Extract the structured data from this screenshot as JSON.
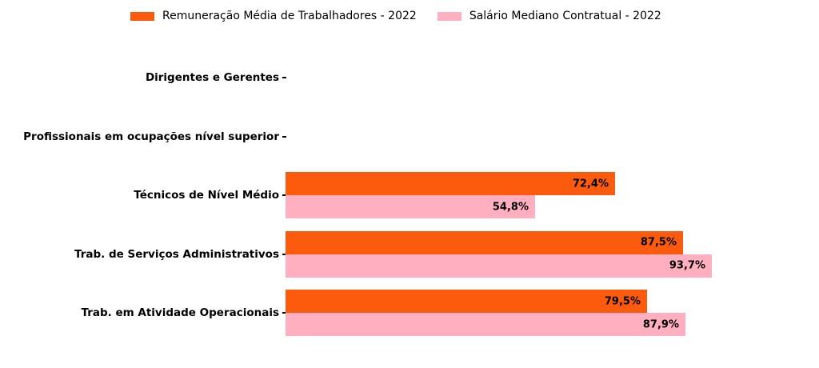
{
  "colors": {
    "background": "#FFFFFF",
    "bar_orange": "#FC5A0D",
    "bar_pink": "#FFAFC0",
    "text": "#000000"
  },
  "legend": {
    "items": [
      {
        "label": "Remuneração Média de Trabalhadores - 2022",
        "color": "#FC5A0D"
      },
      {
        "label": "Salário Mediano Contratual - 2022",
        "color": "#FFAFC0"
      }
    ]
  },
  "chart_data": {
    "type": "bar",
    "orientation": "horizontal",
    "title": "",
    "xlabel": "",
    "ylabel": "",
    "grid": false,
    "legend_position": "top",
    "xlim": [
      0,
      117
    ],
    "value_format": "percent-comma-decimal",
    "categories": [
      "Dirigentes e Gerentes",
      "Profissionais em ocupações nível superior",
      "Técnicos de Nível Médio",
      "Trab. de Serviços Administrativos",
      "Trab. em Atividade Operacionais"
    ],
    "series": [
      {
        "name": "Remuneração Média de Trabalhadores - 2022",
        "id": "remuneracao-media",
        "color": "#FC5A0D",
        "values": [
          null,
          null,
          72.4,
          87.5,
          79.5
        ],
        "value_labels": [
          "",
          "",
          "72,4%",
          "87,5%",
          "79,5%"
        ]
      },
      {
        "name": "Salário Mediano Contratual - 2022",
        "id": "salario-mediano",
        "color": "#FFAFC0",
        "values": [
          null,
          null,
          54.8,
          93.7,
          87.9
        ],
        "value_labels": [
          "",
          "",
          "54,8%",
          "93,7%",
          "87,9%"
        ]
      }
    ]
  }
}
